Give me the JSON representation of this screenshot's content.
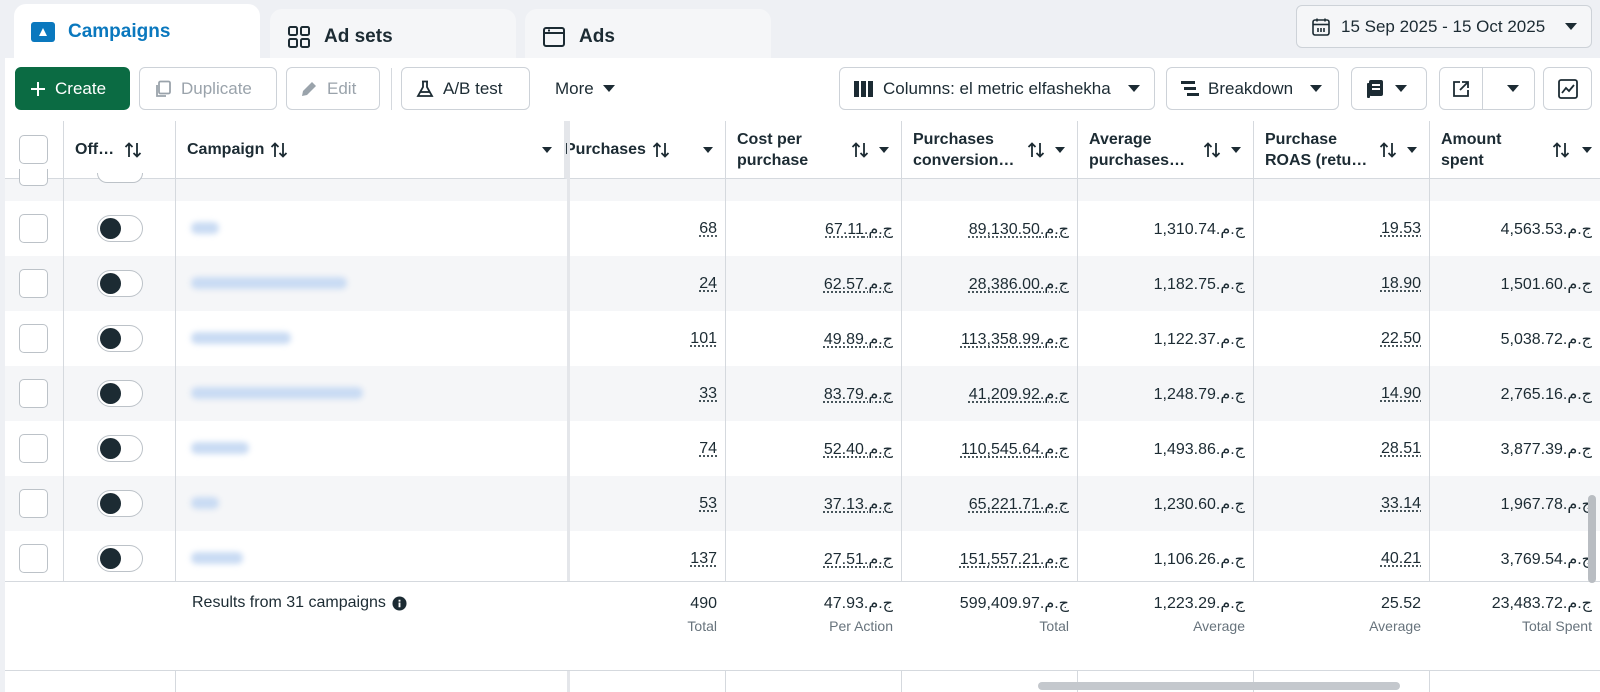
{
  "tabs": [
    {
      "label": "Campaigns"
    },
    {
      "label": "Ad sets"
    },
    {
      "label": "Ads"
    }
  ],
  "date_range": "15 Sep 2025 - 15 Oct 2025",
  "toolbar": {
    "create": "Create",
    "duplicate": "Duplicate",
    "edit": "Edit",
    "ab_test": "A/B test",
    "more": "More",
    "columns": "Columns: el metric elfashekha",
    "breakdown": "Breakdown"
  },
  "headers": {
    "off": "Off…",
    "campaign": "Campaign",
    "purchases": "Purchases",
    "cost_per_purchase": [
      "Cost per",
      "purchase"
    ],
    "purchases_conversion": [
      "Purchases",
      "conversion…"
    ],
    "average_purchases": [
      "Average",
      "purchases…"
    ],
    "purchase_roas": [
      "Purchase",
      "ROAS (retu…"
    ],
    "amount_spent": [
      "Amount",
      "spent"
    ]
  },
  "rows": [
    {
      "purchases": "68",
      "cost": "ج.م.67.11",
      "conversion": "ج.م.89,130.50",
      "average": "ج.م.1,310.74",
      "roas": "19.53",
      "spent": "ج.م.4,563.53"
    },
    {
      "purchases": "24",
      "cost": "ج.م.62.57",
      "conversion": "ج.م.28,386.00",
      "average": "ج.م.1,182.75",
      "roas": "18.90",
      "spent": "ج.م.1,501.60"
    },
    {
      "purchases": "101",
      "cost": "ج.م.49.89",
      "conversion": "ج.م.113,358.99",
      "average": "ج.م.1,122.37",
      "roas": "22.50",
      "spent": "ج.م.5,038.72"
    },
    {
      "purchases": "33",
      "cost": "ج.م.83.79",
      "conversion": "ج.م.41,209.92",
      "average": "ج.م.1,248.79",
      "roas": "14.90",
      "spent": "ج.م.2,765.16"
    },
    {
      "purchases": "74",
      "cost": "ج.م.52.40",
      "conversion": "ج.م.110,545.64",
      "average": "ج.م.1,493.86",
      "roas": "28.51",
      "spent": "ج.م.3,877.39"
    },
    {
      "purchases": "53",
      "cost": "ج.م.37.13",
      "conversion": "ج.م.65,221.71",
      "average": "ج.م.1,230.60",
      "roas": "33.14",
      "spent": "ج.م.1,967.78"
    },
    {
      "purchases": "137",
      "cost": "ج.م.27.51",
      "conversion": "ج.م.151,557.21",
      "average": "ج.م.1,106.26",
      "roas": "40.21",
      "spent": "ج.م.3,769.54"
    }
  ],
  "footer": {
    "label": "Results from 31 campaigns",
    "purchases": {
      "value": "490",
      "sub": "Total"
    },
    "cost": {
      "value": "ج.م.47.93",
      "sub": "Per Action"
    },
    "conversion": {
      "value": "ج.م.599,409.97",
      "sub": "Total"
    },
    "average": {
      "value": "ج.م.1,223.29",
      "sub": "Average"
    },
    "roas": {
      "value": "25.52",
      "sub": "Average"
    },
    "spent": {
      "value": "ج.م.23,483.72",
      "sub": "Total Spent"
    }
  },
  "colors": {
    "accent": "#0a78be",
    "create_button": "#0b6b43",
    "row_alt": "#f5f6f8"
  }
}
